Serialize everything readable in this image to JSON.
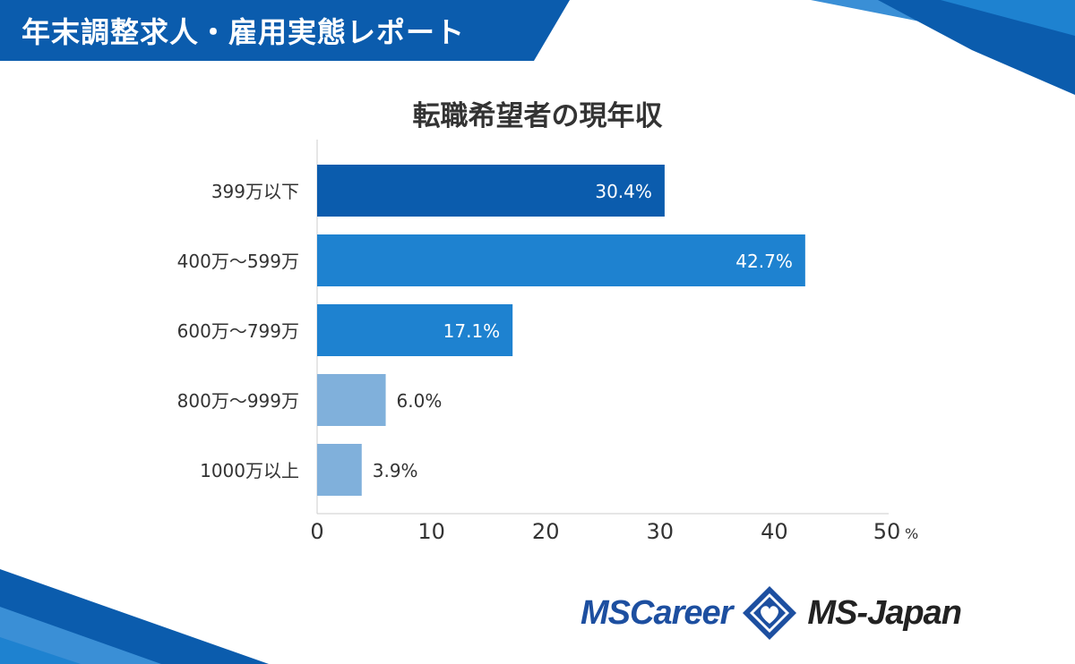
{
  "header": {
    "title": "年末調整求人・雇用実態レポート"
  },
  "colors": {
    "header_bg": "#0b5cad",
    "bar_dark": "#0b5cad",
    "bar_mid": "#1e82d0",
    "bar_light": "#80b0db",
    "text": "#333333"
  },
  "chart_data": {
    "type": "bar",
    "orientation": "horizontal",
    "title": "転職希望者の現年収",
    "categories": [
      "399万以下",
      "400万～599万",
      "600万～799万",
      "800万～999万",
      "1000万以上"
    ],
    "values": [
      30.4,
      42.7,
      17.1,
      6.0,
      3.9
    ],
    "value_labels": [
      "30.4%",
      "42.7%",
      "17.1%",
      "6.0%",
      "3.9%"
    ],
    "xlim": [
      0,
      50
    ],
    "x_ticks": [
      "0",
      "10",
      "20",
      "30",
      "40",
      "50"
    ],
    "x_unit": "%",
    "grid": false,
    "xlabel": "",
    "ylabel": ""
  },
  "footer": {
    "logo_left": "MSCareer",
    "logo_right": "MS-Japan",
    "logo_mark": "diamond-heart-logo-icon"
  }
}
